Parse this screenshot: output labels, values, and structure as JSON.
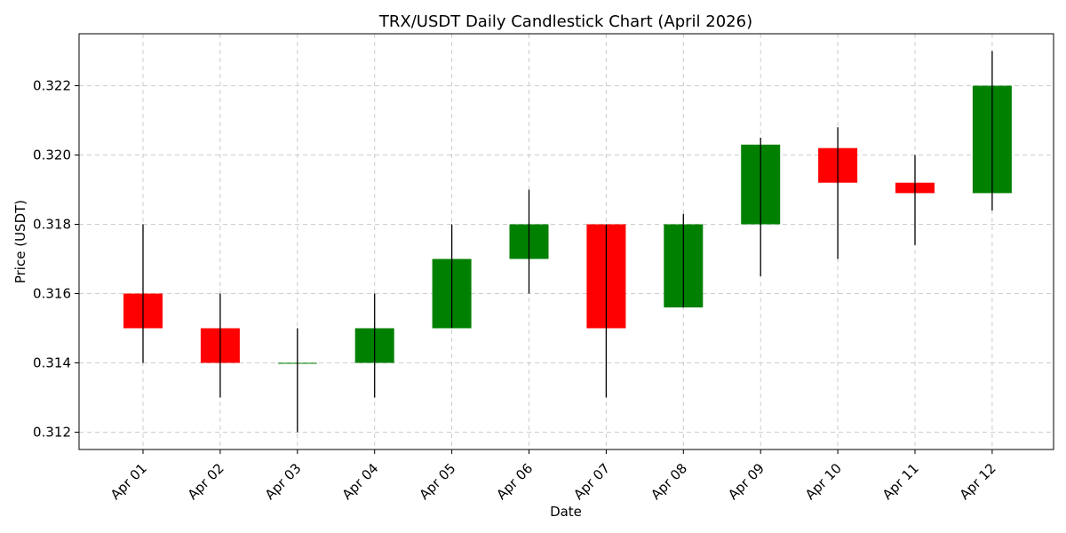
{
  "chart_data": {
    "type": "candlestick",
    "title": "TRX/USDT Daily Candlestick Chart (April 2026)",
    "xlabel": "Date",
    "ylabel": "Price (USDT)",
    "ylim": [
      0.3115,
      0.3235
    ],
    "yticks": [
      0.312,
      0.314,
      0.316,
      0.318,
      0.32,
      0.322
    ],
    "ytick_labels": [
      "0.312",
      "0.314",
      "0.316",
      "0.318",
      "0.320",
      "0.322"
    ],
    "grid": true,
    "colors": {
      "up": "#008000",
      "down": "#ff0000",
      "wick": "#000000",
      "grid": "#cccccc"
    },
    "candles": [
      {
        "date": "Apr 01",
        "open": 0.316,
        "high": 0.318,
        "low": 0.314,
        "close": 0.315
      },
      {
        "date": "Apr 02",
        "open": 0.315,
        "high": 0.316,
        "low": 0.313,
        "close": 0.314
      },
      {
        "date": "Apr 03",
        "open": 0.314,
        "high": 0.315,
        "low": 0.312,
        "close": 0.314
      },
      {
        "date": "Apr 04",
        "open": 0.314,
        "high": 0.316,
        "low": 0.313,
        "close": 0.315
      },
      {
        "date": "Apr 05",
        "open": 0.315,
        "high": 0.318,
        "low": 0.315,
        "close": 0.317
      },
      {
        "date": "Apr 06",
        "open": 0.317,
        "high": 0.319,
        "low": 0.316,
        "close": 0.318
      },
      {
        "date": "Apr 07",
        "open": 0.318,
        "high": 0.318,
        "low": 0.313,
        "close": 0.315
      },
      {
        "date": "Apr 08",
        "open": 0.3156,
        "high": 0.3183,
        "low": 0.3156,
        "close": 0.318
      },
      {
        "date": "Apr 09",
        "open": 0.318,
        "high": 0.3205,
        "low": 0.3165,
        "close": 0.3203
      },
      {
        "date": "Apr 10",
        "open": 0.3202,
        "high": 0.3208,
        "low": 0.317,
        "close": 0.3192
      },
      {
        "date": "Apr 11",
        "open": 0.3192,
        "high": 0.32,
        "low": 0.3174,
        "close": 0.3189
      },
      {
        "date": "Apr 12",
        "open": 0.3189,
        "high": 0.323,
        "low": 0.3184,
        "close": 0.322
      }
    ]
  }
}
